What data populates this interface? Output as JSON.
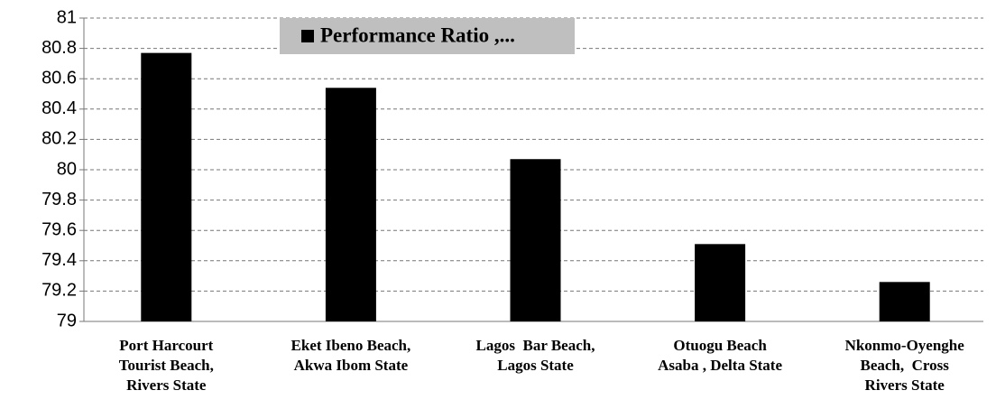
{
  "chart_data": {
    "type": "bar",
    "categories": [
      "Port Harcourt\nTourist Beach,\nRivers State",
      "Eket Ibeno Beach,\nAkwa Ibom State",
      "Lagos  Bar Beach,\nLagos State",
      "Otuogu Beach\nAsaba , Delta State",
      "Nkonmo-Oyenghe\nBeach,  Cross\nRivers State"
    ],
    "series": [
      {
        "name": "Performance Ratio ,...",
        "color": "#000000",
        "values": [
          80.77,
          80.54,
          80.07,
          79.51,
          79.26
        ]
      }
    ],
    "ylim": [
      79,
      81
    ],
    "yticks": [
      79,
      79.2,
      79.4,
      79.6,
      79.8,
      80,
      80.2,
      80.4,
      80.6,
      80.8,
      81
    ],
    "grid": true,
    "legend": "top"
  }
}
